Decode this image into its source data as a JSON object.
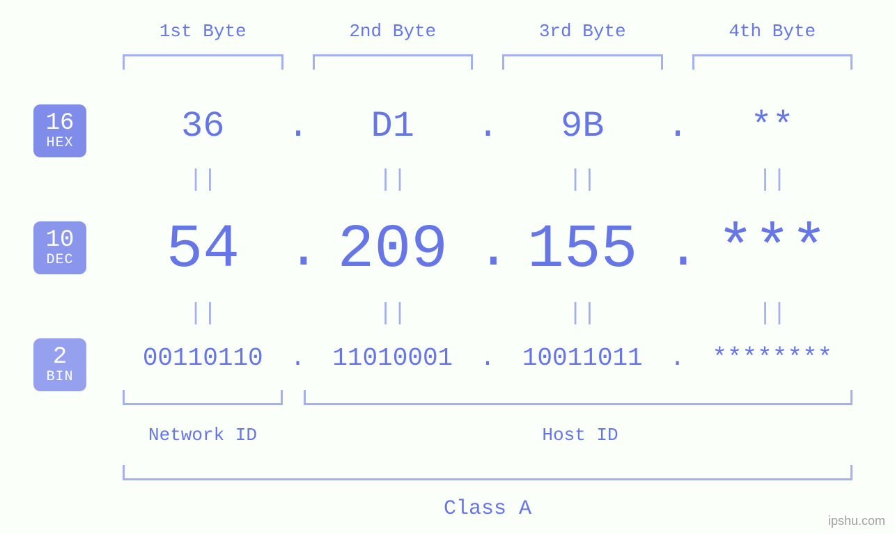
{
  "colors": {
    "accent": "#6776e6",
    "light_accent": "#a6b0f0",
    "badge_hex_bg": "#7f8ce9",
    "badge_dec_bg": "#8a96eb",
    "badge_bin_bg": "#95a0ee",
    "background": "#fafffa",
    "watermark": "#a0a0a0"
  },
  "typography": {
    "font_family": "Courier New, monospace",
    "byte_label_size": 26,
    "hex_size": 52,
    "dec_size": 88,
    "bin_size": 36,
    "equals_size": 34,
    "badge_num_size": 34,
    "badge_txt_size": 20,
    "id_label_size": 26,
    "class_label_size": 30
  },
  "badges": {
    "hex": {
      "num": "16",
      "txt": "HEX"
    },
    "dec": {
      "num": "10",
      "txt": "DEC"
    },
    "bin": {
      "num": "2",
      "txt": "BIN"
    }
  },
  "byte_headers": [
    "1st Byte",
    "2nd Byte",
    "3rd Byte",
    "4th Byte"
  ],
  "hex": [
    "36",
    "D1",
    "9B",
    "**"
  ],
  "dec": [
    "54",
    "209",
    "155",
    "***"
  ],
  "bin": [
    "00110110",
    "11010001",
    "10011011",
    "********"
  ],
  "separator": ".",
  "equals_glyph": "||",
  "id_labels": {
    "network": "Network ID",
    "host": "Host ID"
  },
  "class_label": "Class A",
  "watermark": "ipshu.com"
}
